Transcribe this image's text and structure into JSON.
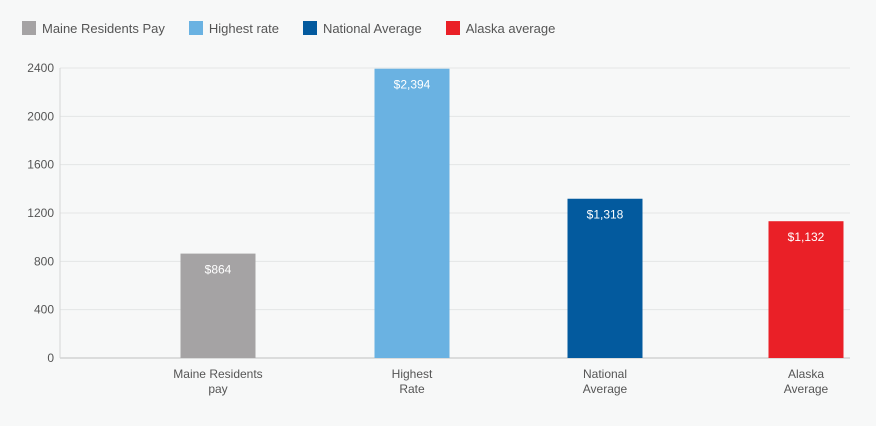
{
  "chart_data": {
    "type": "bar",
    "categories": [
      [
        "Maine Residents",
        "pay"
      ],
      [
        "Highest",
        "Rate"
      ],
      [
        "National",
        "Average"
      ],
      [
        "Alaska",
        "Average"
      ]
    ],
    "values": [
      864,
      2394,
      1318,
      1132
    ],
    "value_labels": [
      "$864",
      "$2,394",
      "$1,318",
      "$1,132"
    ],
    "colors": [
      "#a5a3a4",
      "#6ab2e2",
      "#035a9e",
      "#ea2027"
    ],
    "ylim": [
      0,
      2400
    ],
    "yticks": [
      0,
      400,
      800,
      1200,
      1600,
      2000,
      2400
    ],
    "grid": true,
    "legend_position": "top-left",
    "legend": [
      {
        "label": "Maine Residents Pay",
        "color": "#a5a3a4"
      },
      {
        "label": "Highest rate",
        "color": "#6ab2e2"
      },
      {
        "label": "National Average",
        "color": "#035a9e"
      },
      {
        "label": "Alaska average",
        "color": "#ea2027"
      }
    ]
  }
}
